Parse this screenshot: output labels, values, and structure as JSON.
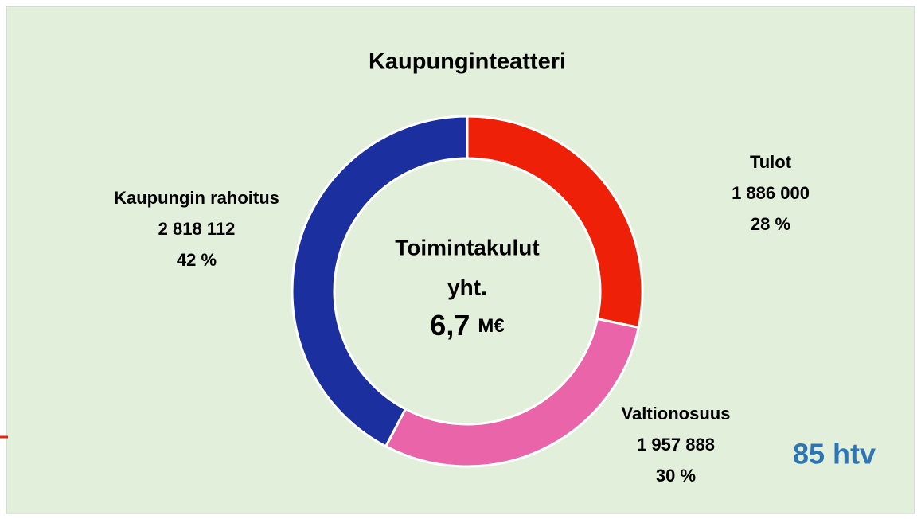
{
  "chart_data": {
    "type": "donut",
    "title": "Kaupunginteatteri",
    "categories": [
      "Tulot",
      "Valtionosuus",
      "Kaupungin rahoitus"
    ],
    "values": [
      1886000,
      1957888,
      2818112
    ],
    "value_labels": [
      "1 886 000",
      "1 957 888",
      "2 818 112"
    ],
    "percentages": [
      28,
      30,
      42
    ],
    "percentage_labels": [
      "28 %",
      "30 %",
      "42 %"
    ],
    "colors": [
      "#ee2007",
      "#e964a8",
      "#1b2f9e"
    ],
    "center_text": [
      "Toimintakulut",
      "yht."
    ],
    "total_label": "6,7",
    "total_unit": "M€",
    "annotation": "85 htv"
  }
}
